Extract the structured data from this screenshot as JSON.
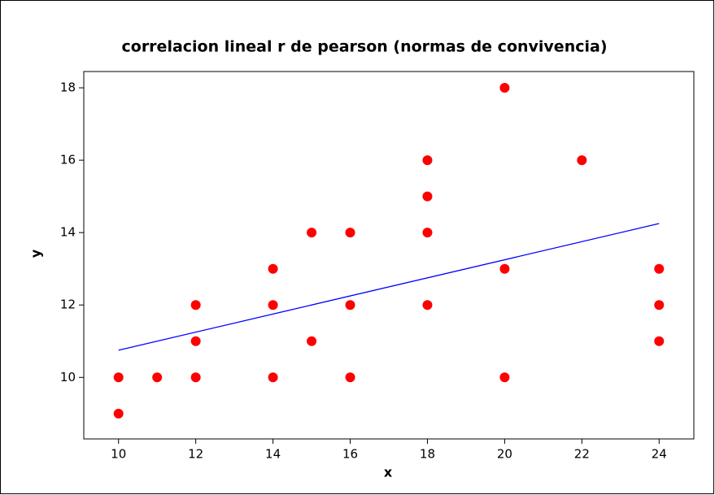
{
  "chart_data": {
    "type": "scatter",
    "title": "correlacion lineal r de pearson (normas de convivencia)",
    "xlabel": "x",
    "ylabel": "y",
    "series": [
      {
        "color": "#ff0000",
        "x": [
          10,
          10,
          11,
          12,
          12,
          12,
          14,
          14,
          14,
          15,
          15,
          16,
          16,
          16,
          18,
          18,
          18,
          18,
          20,
          20,
          20,
          22,
          24,
          24,
          24
        ],
        "y": [
          10,
          9,
          10,
          12,
          11,
          10,
          13,
          12,
          10,
          14,
          11,
          14,
          12,
          10,
          16,
          15,
          14,
          12,
          18,
          13,
          10,
          16,
          13,
          12,
          11
        ]
      }
    ],
    "trendline": {
      "color": "#0000ff",
      "x": [
        10,
        24
      ],
      "y": [
        10.75,
        14.25
      ]
    },
    "xlim": [
      9.1,
      24.9
    ],
    "ylim": [
      8.3,
      18.45
    ],
    "xticks": [
      10,
      12,
      14,
      16,
      18,
      20,
      22,
      24
    ],
    "yticks": [
      10,
      12,
      14,
      16,
      18
    ]
  }
}
